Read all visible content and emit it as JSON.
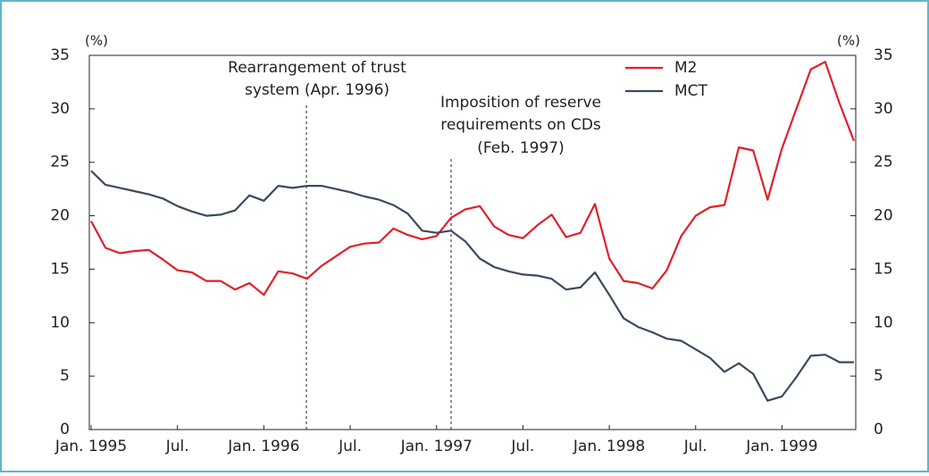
{
  "chart_data": {
    "type": "line",
    "y_unit_left": "(%)",
    "y_unit_right": "(%)",
    "categories": [
      "Jan. 1995",
      null,
      null,
      null,
      null,
      null,
      "Jul.",
      null,
      null,
      null,
      null,
      null,
      "Jan. 1996",
      null,
      null,
      null,
      null,
      null,
      "Jul.",
      null,
      null,
      null,
      null,
      null,
      "Jan. 1997",
      null,
      null,
      null,
      null,
      null,
      "Jul.",
      null,
      null,
      null,
      null,
      null,
      "Jan. 1998",
      null,
      null,
      null,
      null,
      null,
      "Jul.",
      null,
      null,
      null,
      null,
      null,
      "Jan. 1999",
      null,
      null,
      null,
      null,
      null
    ],
    "series": [
      {
        "name": "M2",
        "color": "#e0202a",
        "values": [
          19.5,
          17.0,
          16.5,
          16.7,
          16.8,
          15.9,
          14.9,
          14.7,
          13.9,
          13.9,
          13.1,
          13.7,
          12.6,
          14.8,
          14.6,
          14.1,
          15.3,
          16.2,
          17.1,
          17.4,
          17.5,
          18.8,
          18.2,
          17.8,
          18.1,
          19.8,
          20.6,
          20.9,
          19.0,
          18.2,
          17.9,
          19.1,
          20.1,
          18.0,
          18.4,
          21.1,
          16.0,
          13.9,
          13.7,
          13.2,
          14.9,
          18.1,
          20.0,
          20.8,
          21.0,
          26.4,
          26.1,
          21.5,
          26.3,
          30.0,
          33.7,
          34.4,
          30.5,
          27.0
        ]
      },
      {
        "name": "MCT",
        "color": "#3b4a5e",
        "values": [
          24.2,
          22.9,
          22.6,
          22.3,
          22.0,
          21.6,
          20.9,
          20.4,
          20.0,
          20.1,
          20.5,
          21.9,
          21.4,
          22.8,
          22.6,
          22.8,
          22.8,
          22.5,
          22.2,
          21.8,
          21.5,
          21.0,
          20.2,
          18.6,
          18.4,
          18.6,
          17.6,
          16.0,
          15.2,
          14.8,
          14.5,
          14.4,
          14.1,
          13.1,
          13.3,
          14.7,
          12.6,
          10.4,
          9.6,
          9.1,
          8.5,
          8.3,
          7.5,
          6.7,
          5.4,
          6.2,
          5.2,
          2.7,
          3.1,
          4.9,
          6.9,
          7.0,
          6.3,
          6.3
        ]
      }
    ],
    "ylim": [
      0,
      35
    ],
    "yticks": [
      0,
      5,
      10,
      15,
      20,
      25,
      30,
      35
    ],
    "y2lim": [
      0,
      35
    ],
    "y2ticks": [
      0,
      5,
      10,
      15,
      20,
      25,
      30,
      35
    ],
    "annotations": [
      {
        "lines": [
          "Rearrangement of trust",
          "system (Apr. 1996)"
        ]
      },
      {
        "lines": [
          "Imposition of reserve",
          "requirements on CDs",
          "(Feb. 1997)"
        ]
      }
    ]
  }
}
